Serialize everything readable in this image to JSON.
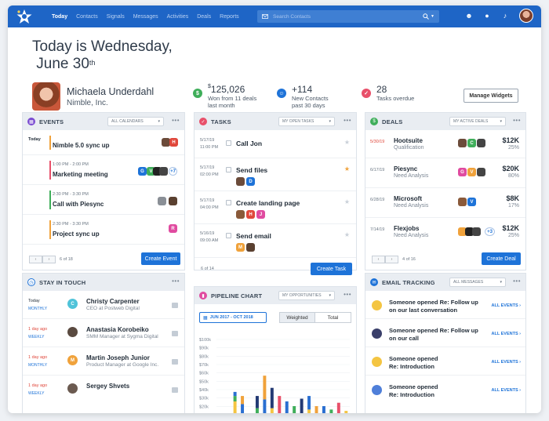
{
  "nav": {
    "items": [
      "Today",
      "Contacts",
      "Signals",
      "Messages",
      "Activities",
      "Deals",
      "Reports"
    ],
    "search_placeholder": "Search Contacts"
  },
  "greeting": {
    "line1": "Today is Wednesday,",
    "line2": "June 30",
    "sup": "th"
  },
  "profile": {
    "name": "Michaela Underdahl",
    "company": "Nimble, Inc."
  },
  "stats": [
    {
      "icon": "dollar-icon",
      "color": "#3fae5a",
      "currency": "$",
      "value": "125,026",
      "label1": "Won from 11 deals",
      "label2": "last month"
    },
    {
      "icon": "people-icon",
      "color": "#1e73d8",
      "currency": "",
      "value": "+114",
      "label1": "New Contacts",
      "label2": "past 30 days"
    },
    {
      "icon": "check-icon",
      "color": "#e8506a",
      "currency": "",
      "value": "28",
      "label1": "Tasks overdue",
      "label2": ""
    }
  ],
  "manage_widgets": "Manage Widgets",
  "events": {
    "title": "EVENTS",
    "filter": "ALL CALENDARS",
    "items": [
      {
        "day": "Today",
        "time": "",
        "title": "Nimble 5.0 sync up",
        "accent": "#f0a23b"
      },
      {
        "day": "",
        "time": "1:00 PM - 2:00 PM",
        "title": "Marketing meeting",
        "accent": "#e8506a",
        "more": "+7"
      },
      {
        "day": "",
        "time": "2:30 PM - 3:30 PM",
        "title": "Call with Piesync",
        "accent": "#3fae5a"
      },
      {
        "day": "",
        "time": "2:30 PM - 3:30 PM",
        "title": "Project sync up",
        "accent": "#f0a23b"
      }
    ],
    "pager": "6 of 18",
    "button": "Create Event"
  },
  "tasks": {
    "title": "TASKS",
    "filter": "MY OPEN TASKS",
    "items": [
      {
        "date": "5/17/19",
        "time": "11:00 PM",
        "title": "Call Jon",
        "starred": false
      },
      {
        "date": "5/17/19",
        "time": "02:00 PM",
        "title": "Send files",
        "starred": true
      },
      {
        "date": "5/17/19",
        "time": "04:00 PM",
        "title": "Create landing page",
        "starred": false
      },
      {
        "date": "5/16/19",
        "time": "09:00 AM",
        "title": "Send email",
        "starred": false
      }
    ],
    "pager": "6 of 14",
    "button": "Create Task"
  },
  "deals": {
    "title": "DEALS",
    "filter": "MY ACTIVE DEALS",
    "items": [
      {
        "date": "5/30/19",
        "overdue": true,
        "name": "Hootsuite",
        "stage": "Qualification",
        "amount": "$12K",
        "pct": "25%"
      },
      {
        "date": "6/17/19",
        "overdue": false,
        "name": "Piesync",
        "stage": "Need Analysis",
        "amount": "$20K",
        "pct": "80%"
      },
      {
        "date": "6/28/19",
        "overdue": false,
        "name": "Microsoft",
        "stage": "Need Analysis",
        "amount": "$8K",
        "pct": "17%"
      },
      {
        "date": "7/14/19",
        "overdue": false,
        "name": "Flexjobs",
        "stage": "Need Analysis",
        "amount": "$12K",
        "pct": "25%",
        "more": "+3"
      }
    ],
    "pager": "4 of 16",
    "button": "Create Deal"
  },
  "stay": {
    "title": "STAY IN TOUCH",
    "items": [
      {
        "when": "Today",
        "freq": "MONTHLY",
        "name": "Christy Carpenter",
        "role": "CEO at Postweb Digital",
        "overdue": false
      },
      {
        "when": "1 day ago",
        "freq": "WEEKLY",
        "name": "Anastasia Korobeiko",
        "role": "SMM Manager at Sygma Digital",
        "overdue": true
      },
      {
        "when": "1 day ago",
        "freq": "MONTHLY",
        "name": "Martin Joseph Junior",
        "role": "Product Manager at Google Inc.",
        "overdue": true
      },
      {
        "when": "1 day ago",
        "freq": "WEEKLY",
        "name": "Sergey Shvets",
        "role": "",
        "overdue": true
      }
    ]
  },
  "pipeline": {
    "title": "PIPELINE CHART",
    "filter": "MY OPPORTUNITIES",
    "range": "JUN 2017 - OCT 2018",
    "tab_weighted": "Weighted",
    "tab_total": "Total"
  },
  "email": {
    "title": "EMAIL TRACKING",
    "filter": "ALL MESSAGES",
    "items": [
      {
        "who": "Someone opened",
        "subject": "Re: Follow up",
        "line2": "on our last conversation",
        "link": "ALL EVENTS"
      },
      {
        "who": "Someone opened",
        "subject": "Re: Follow up",
        "line2": "on our call",
        "link": "ALL EVENTS"
      },
      {
        "who": "Someone opened",
        "subject": "",
        "line2": "Re: Introduction",
        "link": "ALL EVENTS"
      },
      {
        "who": "Someone opened",
        "subject": "",
        "line2": "Re: Introduction",
        "link": "ALL EVENTS"
      }
    ]
  },
  "chart_data": {
    "type": "bar",
    "yticks": [
      "$100k",
      "$90k",
      "$80k",
      "$70k",
      "$60k",
      "$50k",
      "$40k",
      "$30k",
      "$20k"
    ],
    "ylim": [
      0,
      100
    ],
    "series": [
      {
        "color": "#f4c542",
        "values": [
          0,
          0,
          22,
          0,
          0,
          0,
          0,
          12,
          0,
          0,
          0,
          0,
          10,
          0,
          0,
          0,
          0,
          8
        ]
      },
      {
        "color": "#3fae5a",
        "values": [
          0,
          0,
          8,
          0,
          0,
          12,
          0,
          0,
          0,
          0,
          15,
          0,
          0,
          0,
          0,
          10,
          0,
          0
        ]
      },
      {
        "color": "#2a6fd1",
        "values": [
          0,
          0,
          6,
          18,
          0,
          0,
          25,
          0,
          0,
          22,
          0,
          0,
          20,
          0,
          15,
          0,
          0,
          0
        ]
      },
      {
        "color": "#e8506a",
        "values": [
          0,
          0,
          0,
          0,
          0,
          0,
          0,
          0,
          30,
          0,
          0,
          0,
          0,
          0,
          0,
          0,
          20,
          0
        ]
      },
      {
        "color": "#233a74",
        "values": [
          0,
          0,
          0,
          0,
          0,
          18,
          0,
          30,
          0,
          0,
          0,
          26,
          0,
          0,
          0,
          0,
          0,
          0
        ]
      },
      {
        "color": "#f0a23b",
        "values": [
          0,
          0,
          0,
          12,
          0,
          0,
          35,
          0,
          0,
          0,
          0,
          0,
          0,
          15,
          0,
          0,
          0,
          0
        ]
      },
      {
        "color": "#9fc4ee",
        "values": [
          0,
          0,
          0,
          0,
          0,
          0,
          0,
          0,
          0,
          0,
          0,
          0,
          0,
          0,
          0,
          0,
          0,
          0
        ]
      }
    ]
  }
}
